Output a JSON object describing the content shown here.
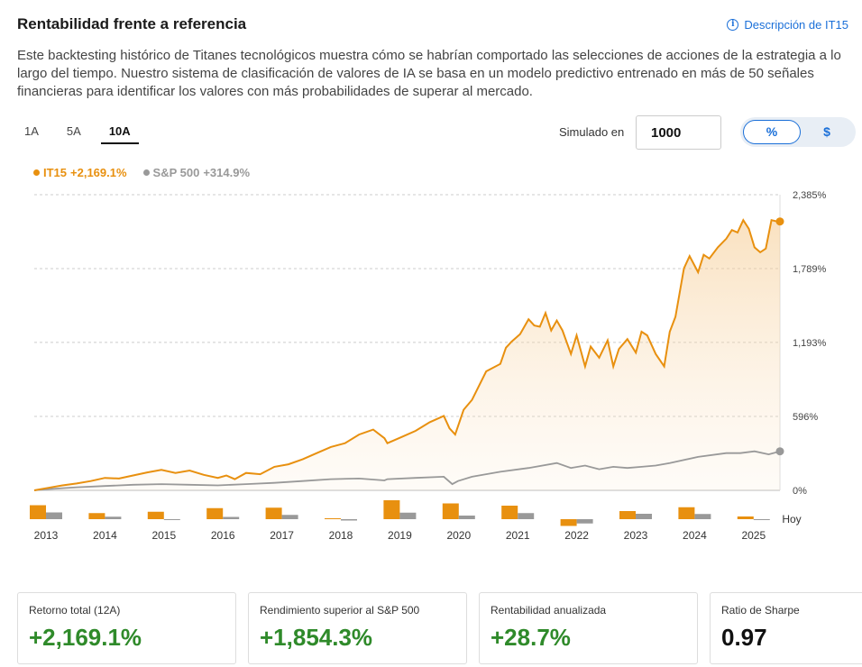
{
  "header": {
    "title": "Rentabilidad frente a referencia",
    "link_label": "Descripción de IT15",
    "description": "Este backtesting histórico de Titanes tecnológicos muestra cómo se habrían comportado las selecciones de acciones de la estrategia a lo largo del tiempo. Nuestro sistema de clasificación de valores de IA se basa en un modelo predictivo entrenado en más de 50 señales financieras para identificar los valores con más probabilidades de superar al mercado."
  },
  "controls": {
    "periods": [
      "1A",
      "5A",
      "10A"
    ],
    "active_period": "10A",
    "simulated_label": "Simulado en",
    "simulated_value": "1000",
    "toggle": {
      "percent_label": "%",
      "dollar_label": "$",
      "selected": "%"
    }
  },
  "legend": {
    "strategy_name": "IT15",
    "strategy_value": "+2,169.1%",
    "benchmark_name": "S&P 500",
    "benchmark_value": "+314.9%"
  },
  "colors": {
    "strategy": "#e8900f",
    "benchmark": "#999999",
    "positive": "#2f8a2a",
    "accent": "#1a6fd8"
  },
  "chart_data": {
    "type": "line",
    "y_ticks": [
      "2,385%",
      "1,789%",
      "1,193%",
      "596%",
      "0%"
    ],
    "y_tick_values": [
      2385,
      1789,
      1193,
      596,
      0
    ],
    "ylim": [
      0,
      2385
    ],
    "xlim": [
      2012.75,
      2025.95
    ],
    "grid": true,
    "series": [
      {
        "name": "IT15",
        "x": [
          2012.75,
          2013.0,
          2013.25,
          2013.5,
          2013.75,
          2014.0,
          2014.25,
          2014.5,
          2014.75,
          2015.0,
          2015.25,
          2015.5,
          2015.75,
          2016.0,
          2016.15,
          2016.3,
          2016.5,
          2016.75,
          2017.0,
          2017.25,
          2017.5,
          2017.75,
          2018.0,
          2018.25,
          2018.5,
          2018.75,
          2018.95,
          2019.0,
          2019.25,
          2019.5,
          2019.75,
          2020.0,
          2020.1,
          2020.2,
          2020.35,
          2020.5,
          2020.75,
          2021.0,
          2021.1,
          2021.2,
          2021.35,
          2021.5,
          2021.6,
          2021.7,
          2021.8,
          2021.9,
          2022.0,
          2022.1,
          2022.25,
          2022.35,
          2022.5,
          2022.6,
          2022.75,
          2022.9,
          2023.0,
          2023.1,
          2023.25,
          2023.4,
          2023.5,
          2023.6,
          2023.75,
          2023.9,
          2024.0,
          2024.1,
          2024.25,
          2024.35,
          2024.5,
          2024.6,
          2024.7,
          2024.85,
          2025.0,
          2025.1,
          2025.2,
          2025.3,
          2025.4,
          2025.5,
          2025.6,
          2025.7,
          2025.8,
          2025.9,
          2025.95
        ],
        "values": [
          0,
          20,
          40,
          55,
          75,
          100,
          95,
          120,
          145,
          165,
          140,
          160,
          125,
          100,
          120,
          90,
          140,
          130,
          190,
          210,
          250,
          300,
          350,
          380,
          450,
          490,
          420,
          380,
          430,
          480,
          550,
          600,
          500,
          450,
          650,
          730,
          960,
          1020,
          1150,
          1200,
          1260,
          1380,
          1330,
          1320,
          1430,
          1290,
          1370,
          1290,
          1100,
          1250,
          1000,
          1160,
          1070,
          1210,
          1000,
          1140,
          1220,
          1110,
          1280,
          1250,
          1100,
          1000,
          1280,
          1400,
          1790,
          1890,
          1760,
          1900,
          1870,
          1960,
          2030,
          2100,
          2080,
          2180,
          2110,
          1960,
          1920,
          1950,
          2180,
          2169,
          2169
        ]
      },
      {
        "name": "S&P 500",
        "x": [
          2012.75,
          2013.0,
          2013.5,
          2014.0,
          2014.5,
          2015.0,
          2015.5,
          2016.0,
          2016.5,
          2017.0,
          2017.5,
          2018.0,
          2018.5,
          2018.95,
          2019.0,
          2019.5,
          2020.0,
          2020.15,
          2020.25,
          2020.5,
          2021.0,
          2021.5,
          2022.0,
          2022.25,
          2022.5,
          2022.75,
          2023.0,
          2023.25,
          2023.5,
          2023.75,
          2024.0,
          2024.5,
          2025.0,
          2025.25,
          2025.5,
          2025.75,
          2025.95
        ],
        "values": [
          0,
          10,
          25,
          35,
          45,
          50,
          45,
          40,
          50,
          60,
          75,
          90,
          95,
          80,
          90,
          100,
          110,
          50,
          75,
          110,
          150,
          180,
          220,
          180,
          200,
          170,
          190,
          180,
          190,
          200,
          220,
          270,
          300,
          300,
          315,
          290,
          314.9
        ]
      }
    ],
    "bar_categories": [
      "2013",
      "2014",
      "2015",
      "2016",
      "2017",
      "2018",
      "2019",
      "2020",
      "2021",
      "2022",
      "2023",
      "2024",
      "2025"
    ],
    "bar_series": [
      {
        "name": "IT15",
        "values": [
          62,
          27,
          33,
          49,
          51,
          4,
          84,
          70,
          60,
          -30,
          36,
          53,
          12
        ]
      },
      {
        "name": "S&P 500",
        "values": [
          30,
          11,
          -1,
          10,
          19,
          -6,
          29,
          16,
          27,
          -19,
          24,
          23,
          -3
        ]
      }
    ],
    "bar_end_label": "Hoy"
  },
  "metrics": [
    {
      "label": "Retorno total (12A)",
      "value": "+2,169.1%",
      "tone": "green"
    },
    {
      "label": "Rendimiento superior al S&P 500",
      "value": "+1,854.3%",
      "tone": "green"
    },
    {
      "label": "Rentabilidad anualizada",
      "value": "+28.7%",
      "tone": "green"
    },
    {
      "label": "Ratio de Sharpe",
      "value": "0.97",
      "tone": "dark"
    }
  ]
}
